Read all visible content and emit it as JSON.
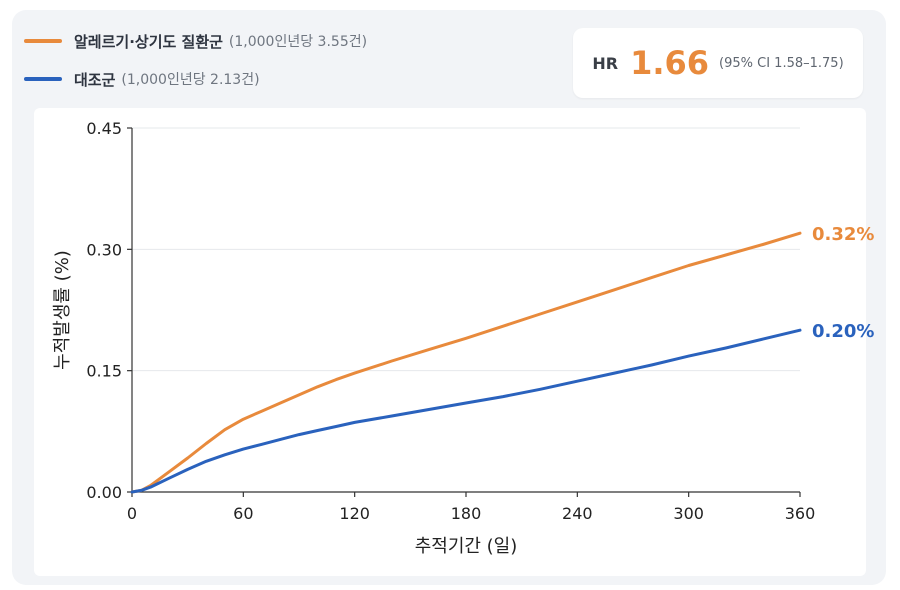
{
  "legend": {
    "allergy": {
      "name": "알레르기·상기도 질환군",
      "note": "(1,000인년당 3.55건)",
      "color": "#e88a3c"
    },
    "control": {
      "name": "대조군",
      "note": "(1,000인년당 2.13건)",
      "color": "#2a62bd"
    }
  },
  "hazard_ratio": {
    "label": "HR",
    "value": "1.66",
    "ci": "(95% CI 1.58–1.75)"
  },
  "chart_data": {
    "type": "line",
    "xlabel": "추적기간 (일)",
    "ylabel": "누적발생률 (%)",
    "xlim": [
      0,
      360
    ],
    "ylim": [
      0,
      0.45
    ],
    "xticks": [
      0,
      60,
      120,
      180,
      240,
      300,
      360
    ],
    "xtick_labels": [
      "0",
      "60",
      "120",
      "180",
      "240",
      "300",
      "360"
    ],
    "yticks": [
      0,
      0.15,
      0.3,
      0.45
    ],
    "ytick_labels": [
      "0.00",
      "0.15",
      "0.30",
      "0.45"
    ],
    "grid": "horizontal",
    "series": [
      {
        "name": "알레르기·상기도 질환군",
        "color": "#e88a3c",
        "end_label": "0.32%",
        "x": [
          0,
          5,
          10,
          20,
          30,
          40,
          50,
          60,
          70,
          80,
          90,
          100,
          110,
          120,
          140,
          160,
          180,
          200,
          220,
          240,
          260,
          280,
          300,
          320,
          340,
          360
        ],
        "y": [
          0,
          0.002,
          0.008,
          0.025,
          0.042,
          0.06,
          0.077,
          0.09,
          0.1,
          0.11,
          0.12,
          0.13,
          0.139,
          0.147,
          0.162,
          0.176,
          0.19,
          0.205,
          0.22,
          0.235,
          0.25,
          0.265,
          0.28,
          0.293,
          0.306,
          0.32
        ]
      },
      {
        "name": "대조군",
        "color": "#2a62bd",
        "end_label": "0.20%",
        "x": [
          0,
          5,
          10,
          20,
          30,
          40,
          50,
          60,
          70,
          80,
          90,
          100,
          110,
          120,
          140,
          160,
          180,
          200,
          220,
          240,
          260,
          280,
          300,
          320,
          340,
          360
        ],
        "y": [
          0,
          0.002,
          0.006,
          0.017,
          0.028,
          0.038,
          0.046,
          0.053,
          0.059,
          0.065,
          0.071,
          0.076,
          0.081,
          0.086,
          0.094,
          0.102,
          0.11,
          0.118,
          0.127,
          0.137,
          0.147,
          0.157,
          0.168,
          0.178,
          0.189,
          0.2
        ]
      }
    ]
  }
}
